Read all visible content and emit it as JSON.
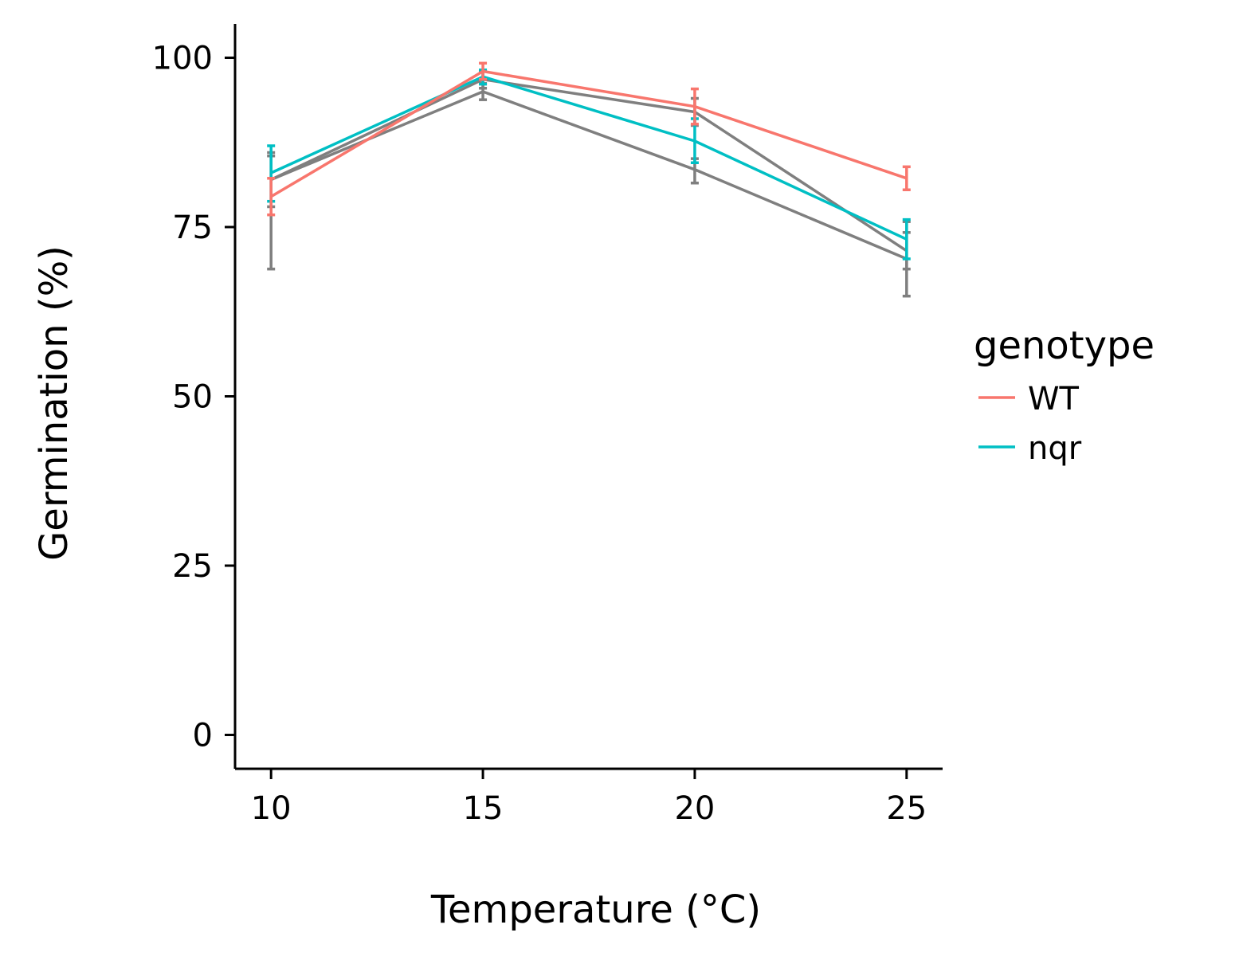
{
  "chart_data": {
    "type": "line",
    "xlabel": "Temperature (°C)",
    "ylabel": "Germination (%)",
    "x_ticks": [
      10,
      15,
      20,
      25
    ],
    "y_ticks": [
      0,
      25,
      50,
      75,
      100
    ],
    "xlim": [
      9.15,
      25.85
    ],
    "ylim": [
      -5,
      105
    ],
    "grid": false,
    "legend": {
      "title": "genotype",
      "placement": "right",
      "entries": [
        {
          "label": "WT",
          "color": "#F8766D"
        },
        {
          "label": "nqr",
          "color": "#00BFC4"
        }
      ]
    },
    "series": [
      {
        "name": "WT",
        "color": "#F8766D",
        "x": [
          10,
          15,
          20,
          25
        ],
        "y": [
          79.5,
          98.0,
          92.8,
          82.2
        ],
        "err_low": [
          76.8,
          96.8,
          90.2,
          80.5
        ],
        "err_high": [
          82.2,
          99.2,
          95.4,
          83.9
        ]
      },
      {
        "name": "nqr",
        "color": "#00BFC4",
        "x": [
          10,
          15,
          20,
          25
        ],
        "y": [
          83.0,
          97.2,
          87.7,
          73.2
        ],
        "err_low": [
          78.8,
          96.1,
          84.5,
          70.3
        ],
        "err_high": [
          87.0,
          98.2,
          91.0,
          76.1
        ]
      },
      {
        "color": "#7F7F7F",
        "x": [
          10,
          15,
          20,
          25
        ],
        "y": [
          82.0,
          96.8,
          92.0,
          71.5
        ],
        "err_low": [
          78.0,
          95.5,
          90.0,
          68.8
        ],
        "err_high": [
          86.0,
          98.0,
          94.0,
          74.2
        ]
      },
      {
        "color": "#7F7F7F",
        "x": [
          10,
          15,
          20,
          25
        ],
        "y": [
          82.0,
          95.0,
          83.5,
          70.3
        ],
        "err_low": [
          68.8,
          93.8,
          81.5,
          64.8
        ],
        "err_high": [
          85.5,
          96.2,
          85.1,
          75.8
        ]
      }
    ]
  }
}
